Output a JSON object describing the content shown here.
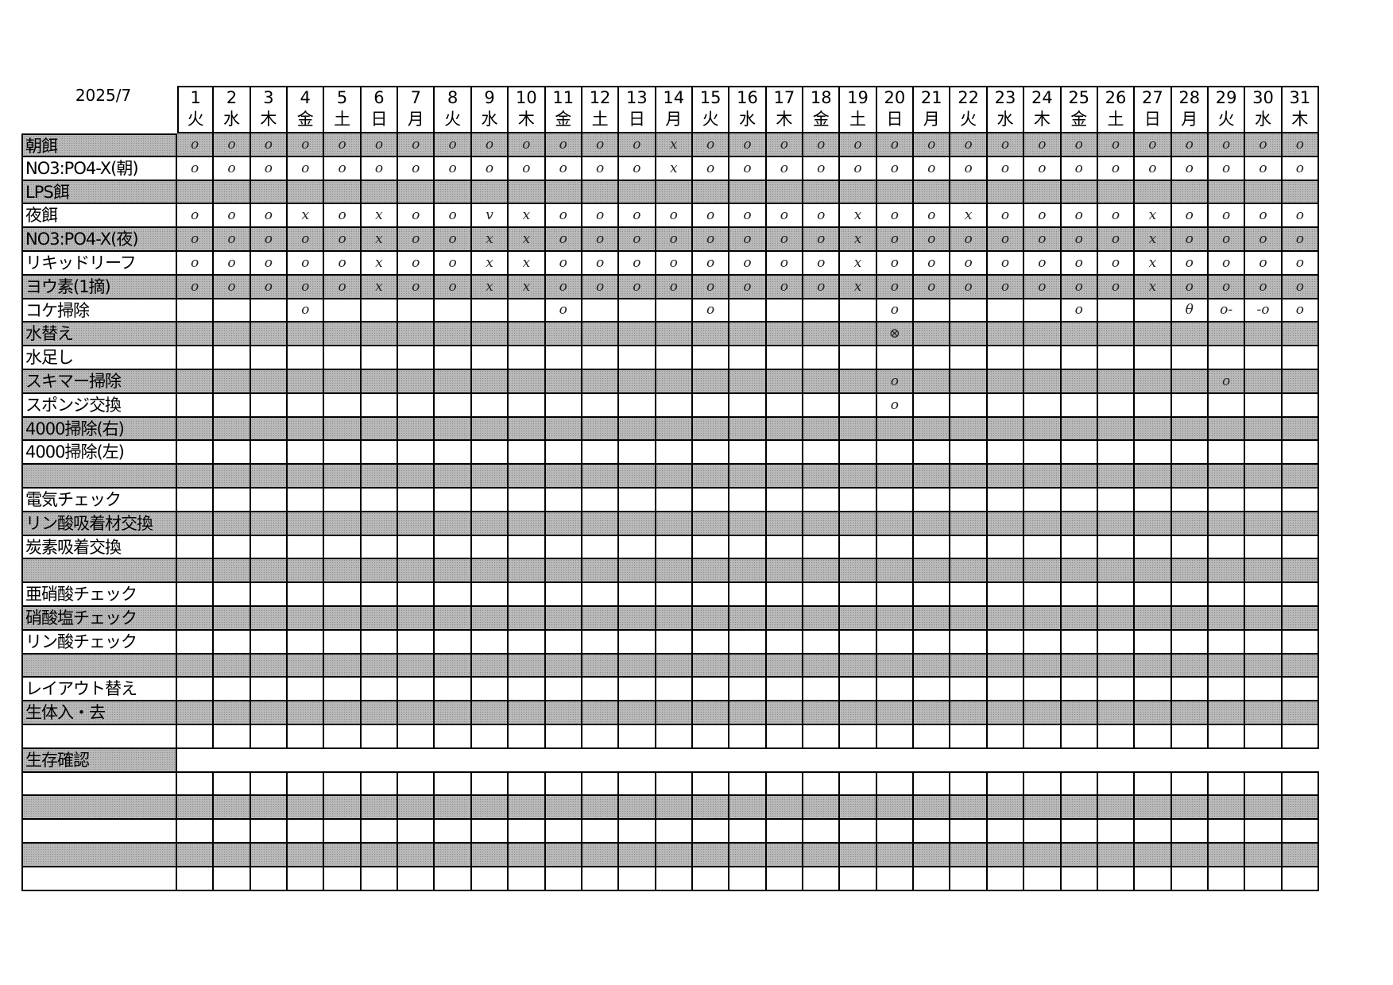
{
  "title": "2025/7",
  "days": [
    {
      "d": "1",
      "w": "火"
    },
    {
      "d": "2",
      "w": "水"
    },
    {
      "d": "3",
      "w": "木"
    },
    {
      "d": "4",
      "w": "金"
    },
    {
      "d": "5",
      "w": "土"
    },
    {
      "d": "6",
      "w": "日"
    },
    {
      "d": "7",
      "w": "月"
    },
    {
      "d": "8",
      "w": "火"
    },
    {
      "d": "9",
      "w": "水"
    },
    {
      "d": "10",
      "w": "木"
    },
    {
      "d": "11",
      "w": "金"
    },
    {
      "d": "12",
      "w": "土"
    },
    {
      "d": "13",
      "w": "日"
    },
    {
      "d": "14",
      "w": "月"
    },
    {
      "d": "15",
      "w": "火"
    },
    {
      "d": "16",
      "w": "水"
    },
    {
      "d": "17",
      "w": "木"
    },
    {
      "d": "18",
      "w": "金"
    },
    {
      "d": "19",
      "w": "土"
    },
    {
      "d": "20",
      "w": "日"
    },
    {
      "d": "21",
      "w": "月"
    },
    {
      "d": "22",
      "w": "火"
    },
    {
      "d": "23",
      "w": "水"
    },
    {
      "d": "24",
      "w": "木"
    },
    {
      "d": "25",
      "w": "金"
    },
    {
      "d": "26",
      "w": "土"
    },
    {
      "d": "27",
      "w": "日"
    },
    {
      "d": "28",
      "w": "月"
    },
    {
      "d": "29",
      "w": "火"
    },
    {
      "d": "30",
      "w": "水"
    },
    {
      "d": "31",
      "w": "木"
    }
  ],
  "rows": [
    {
      "label": "朝餌",
      "shade": "gray",
      "marks": [
        "o",
        "o",
        "o",
        "o",
        "o",
        "o",
        "o",
        "o",
        "o",
        "o",
        "o",
        "o",
        "o",
        "x",
        "o",
        "o",
        "o",
        "o",
        "o",
        "o",
        "o",
        "o",
        "o",
        "o",
        "o",
        "o",
        "o",
        "o",
        "o",
        "o",
        "o"
      ]
    },
    {
      "label": "NO3:PO4-X(朝)",
      "shade": "white",
      "marks": [
        "o",
        "o",
        "o",
        "o",
        "o",
        "o",
        "o",
        "o",
        "o",
        "o",
        "o",
        "o",
        "o",
        "x",
        "o",
        "o",
        "o",
        "o",
        "o",
        "o",
        "o",
        "o",
        "o",
        "o",
        "o",
        "o",
        "o",
        "o",
        "o",
        "o",
        "o"
      ]
    },
    {
      "label": "LPS餌",
      "shade": "gray",
      "marks": []
    },
    {
      "label": "夜餌",
      "shade": "white",
      "marks": [
        "o",
        "o",
        "o",
        "x",
        "o",
        "x",
        "o",
        "o",
        "v",
        "x",
        "o",
        "o",
        "o",
        "o",
        "o",
        "o",
        "o",
        "o",
        "x",
        "o",
        "o",
        "x",
        "o",
        "o",
        "o",
        "o",
        "x",
        "o",
        "o",
        "o",
        "o"
      ]
    },
    {
      "label": "NO3:PO4-X(夜)",
      "shade": "gray",
      "marks": [
        "o",
        "o",
        "o",
        "o",
        "o",
        "x",
        "o",
        "o",
        "x",
        "x",
        "o",
        "o",
        "o",
        "o",
        "o",
        "o",
        "o",
        "o",
        "x",
        "o",
        "o",
        "o",
        "o",
        "o",
        "o",
        "o",
        "x",
        "o",
        "o",
        "o",
        "o"
      ]
    },
    {
      "label": "リキッドリーフ",
      "shade": "white",
      "marks": [
        "o",
        "o",
        "o",
        "o",
        "o",
        "x",
        "o",
        "o",
        "x",
        "x",
        "o",
        "o",
        "o",
        "o",
        "o",
        "o",
        "o",
        "o",
        "x",
        "o",
        "o",
        "o",
        "o",
        "o",
        "o",
        "o",
        "x",
        "o",
        "o",
        "o",
        "o"
      ]
    },
    {
      "label": "ヨウ素(1摘)",
      "shade": "gray",
      "marks": [
        "o",
        "o",
        "o",
        "o",
        "o",
        "x",
        "o",
        "o",
        "x",
        "x",
        "o",
        "o",
        "o",
        "o",
        "o",
        "o",
        "o",
        "o",
        "x",
        "o",
        "o",
        "o",
        "o",
        "o",
        "o",
        "o",
        "x",
        "o",
        "o",
        "o",
        "o"
      ]
    },
    {
      "label": "コケ掃除",
      "shade": "white",
      "marks": [
        "",
        "",
        "",
        "o",
        "",
        "",
        "",
        "",
        "",
        "",
        "o",
        "",
        "",
        "",
        "o",
        "",
        "",
        "",
        "",
        "o",
        "",
        "",
        "",
        "",
        "o",
        "",
        "",
        "θ",
        "o-",
        "-o",
        "o"
      ]
    },
    {
      "label": "水替え",
      "shade": "gray",
      "marks": [
        "",
        "",
        "",
        "",
        "",
        "",
        "",
        "",
        "",
        "",
        "",
        "",
        "",
        "",
        "",
        "",
        "",
        "",
        "",
        "⊗"
      ]
    },
    {
      "label": "水足し",
      "shade": "white",
      "marks": []
    },
    {
      "label": "スキマー掃除",
      "shade": "gray",
      "marks": [
        "",
        "",
        "",
        "",
        "",
        "",
        "",
        "",
        "",
        "",
        "",
        "",
        "",
        "",
        "",
        "",
        "",
        "",
        "",
        "o",
        "",
        "",
        "",
        "",
        "",
        "",
        "",
        "",
        "o"
      ]
    },
    {
      "label": "スポンジ交換",
      "shade": "white",
      "marks": [
        "",
        "",
        "",
        "",
        "",
        "",
        "",
        "",
        "",
        "",
        "",
        "",
        "",
        "",
        "",
        "",
        "",
        "",
        "",
        "o"
      ]
    },
    {
      "label": "4000掃除(右)",
      "shade": "gray",
      "marks": []
    },
    {
      "label": "4000掃除(左)",
      "shade": "white",
      "marks": []
    },
    {
      "label": "",
      "shade": "gray",
      "marks": []
    },
    {
      "label": "電気チェック",
      "shade": "white",
      "marks": []
    },
    {
      "label": "リン酸吸着材交換",
      "shade": "gray",
      "marks": []
    },
    {
      "label": "炭素吸着交換",
      "shade": "white",
      "marks": []
    },
    {
      "label": "",
      "shade": "gray",
      "marks": []
    },
    {
      "label": "亜硝酸チェック",
      "shade": "white",
      "marks": []
    },
    {
      "label": "硝酸塩チェック",
      "shade": "gray",
      "marks": []
    },
    {
      "label": "リン酸チェック",
      "shade": "white",
      "marks": []
    },
    {
      "label": "",
      "shade": "gray",
      "marks": []
    },
    {
      "label": "レイアウト替え",
      "shade": "white",
      "marks": []
    },
    {
      "label": "生体入・去",
      "shade": "gray",
      "marks": []
    },
    {
      "label": "",
      "shade": "white",
      "marks": []
    }
  ],
  "survival": {
    "label": "生存確認",
    "rows": [
      {
        "label": "",
        "shade": "white"
      },
      {
        "label": "",
        "shade": "gray"
      },
      {
        "label": "",
        "shade": "white"
      },
      {
        "label": "",
        "shade": "gray"
      },
      {
        "label": "",
        "shade": "white"
      }
    ]
  }
}
